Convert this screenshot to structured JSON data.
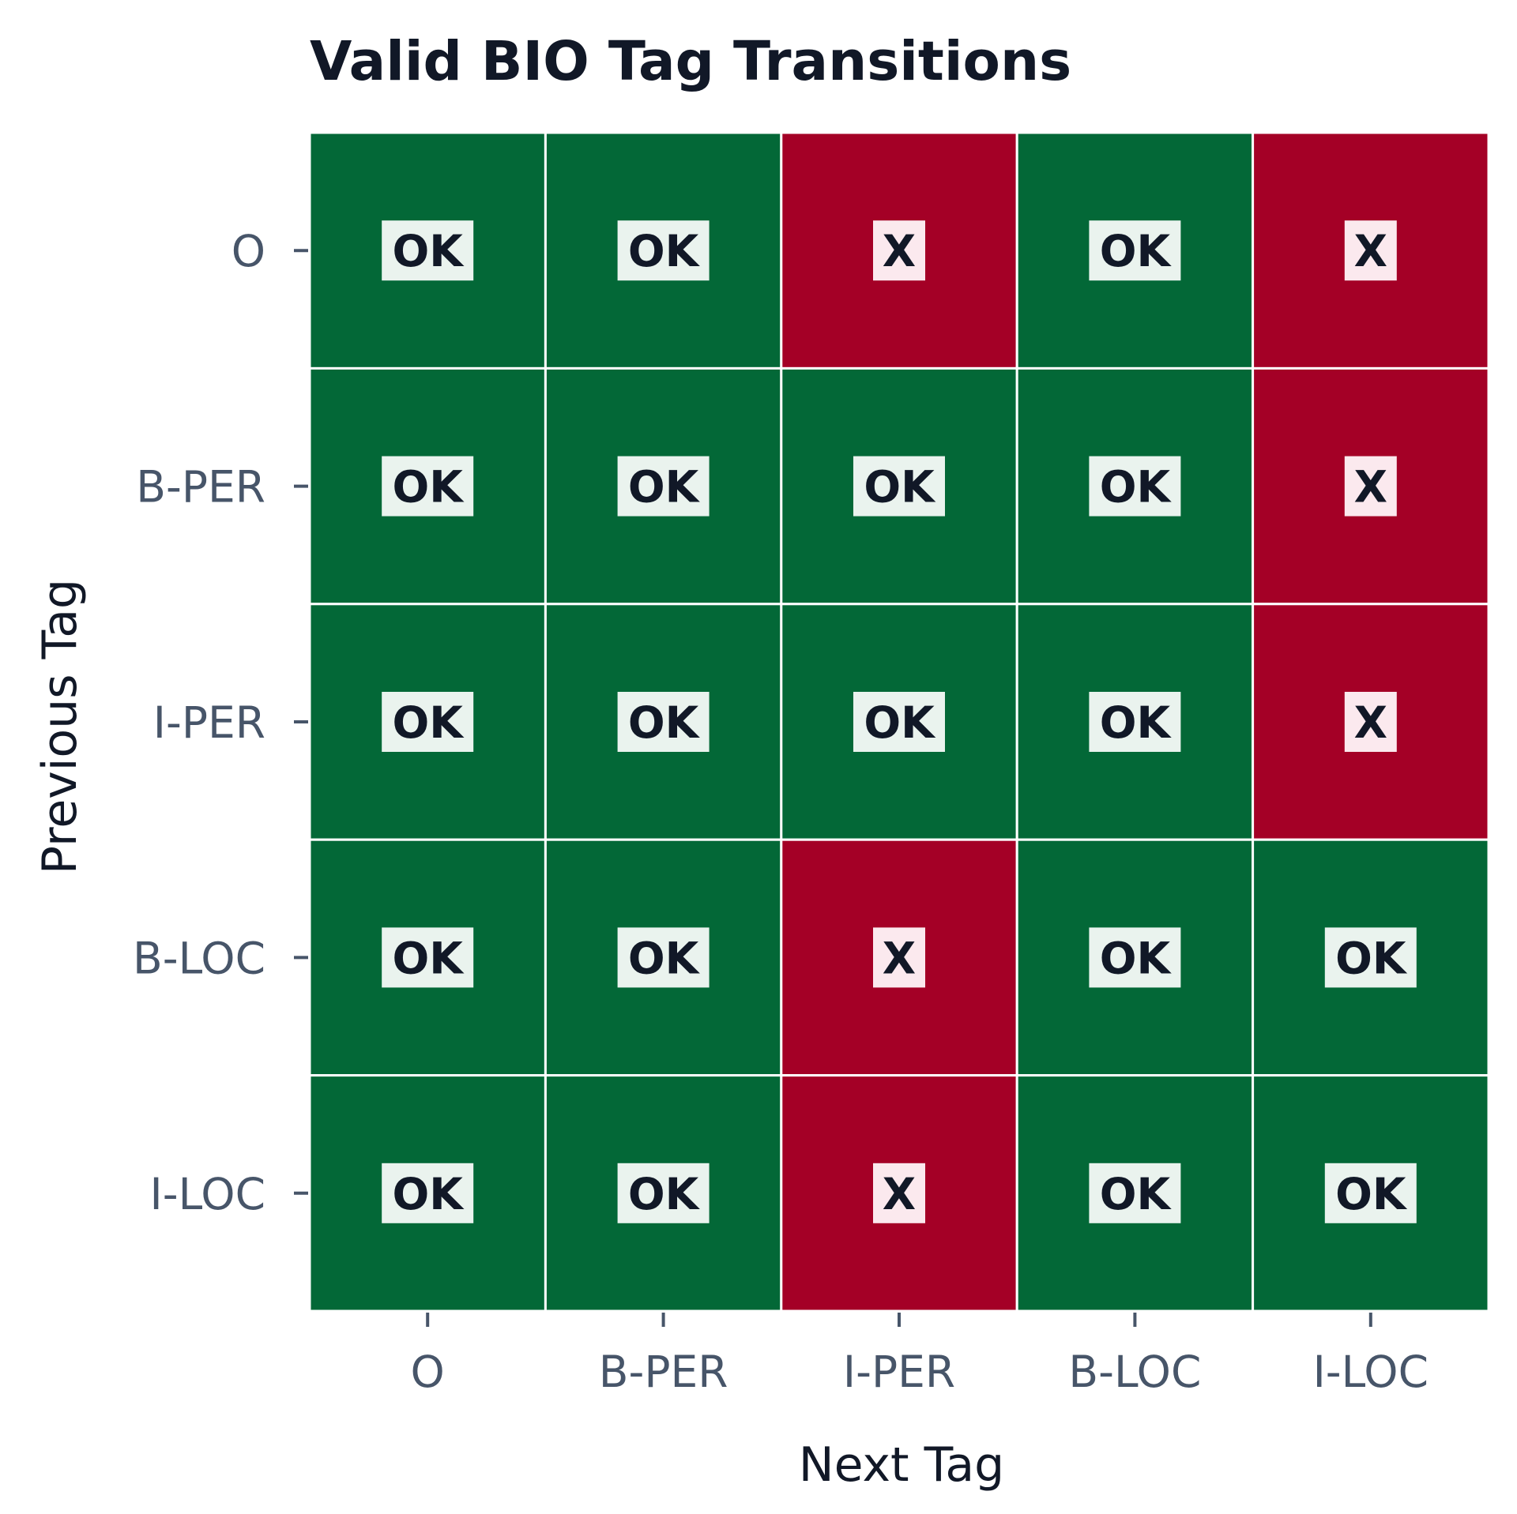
{
  "chart_data": {
    "type": "heatmap",
    "title": "Valid BIO Tag Transitions",
    "xlabel": "Next Tag",
    "ylabel": "Previous Tag",
    "x_categories": [
      "O",
      "B-PER",
      "I-PER",
      "B-LOC",
      "I-LOC"
    ],
    "y_categories": [
      "O",
      "B-PER",
      "I-PER",
      "B-LOC",
      "I-LOC"
    ],
    "values": [
      [
        1,
        1,
        0,
        1,
        0
      ],
      [
        1,
        1,
        1,
        1,
        0
      ],
      [
        1,
        1,
        1,
        1,
        0
      ],
      [
        1,
        1,
        0,
        1,
        1
      ],
      [
        1,
        1,
        0,
        1,
        1
      ]
    ],
    "cell_text": {
      "valid": "OK",
      "invalid": "X"
    },
    "colors": {
      "valid": "#036837",
      "invalid": "#a40026",
      "valid_label_bg": "#eaf3ee",
      "invalid_label_bg": "#fbe9ee",
      "grid_line": "#ffffff"
    },
    "grid": false
  }
}
